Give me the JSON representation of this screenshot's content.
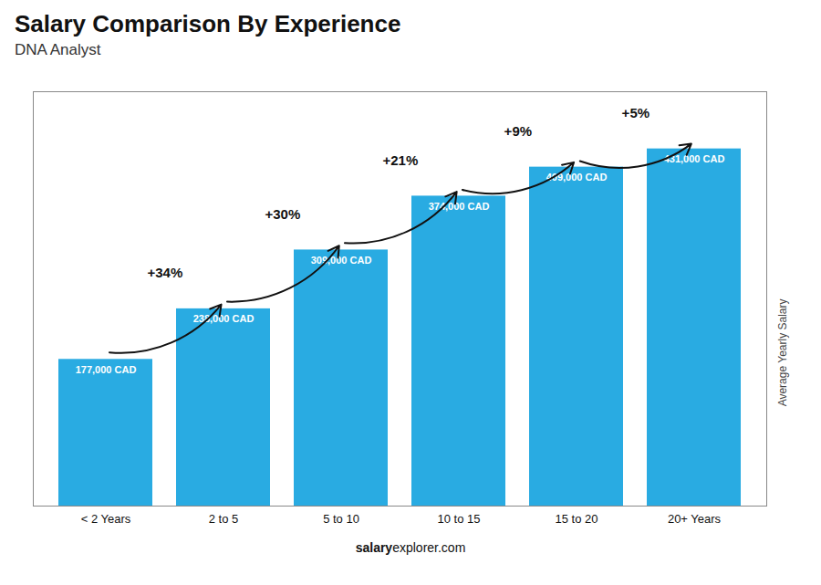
{
  "chart_data": {
    "type": "bar",
    "title": "Salary Comparison By Experience",
    "subtitle": "DNA Analyst",
    "categories": [
      "< 2 Years",
      "2 to 5",
      "5 to 10",
      "10 to 15",
      "15 to 20",
      "20+ Years"
    ],
    "values": [
      177000,
      238000,
      309000,
      374000,
      409000,
      431000
    ],
    "value_labels": [
      "177,000 CAD",
      "238,000 CAD",
      "309,000 CAD",
      "374,000 CAD",
      "409,000 CAD",
      "431,000 CAD"
    ],
    "data_labels": true,
    "annotations": [
      "+34%",
      "+30%",
      "+21%",
      "+9%",
      "+5%"
    ],
    "ylabel": "Average Yearly Salary",
    "footer": [
      "salary",
      "explorer.com"
    ],
    "color": "#29ABE2",
    "ylim": [
      0,
      500000
    ],
    "tick_labels": "x"
  }
}
